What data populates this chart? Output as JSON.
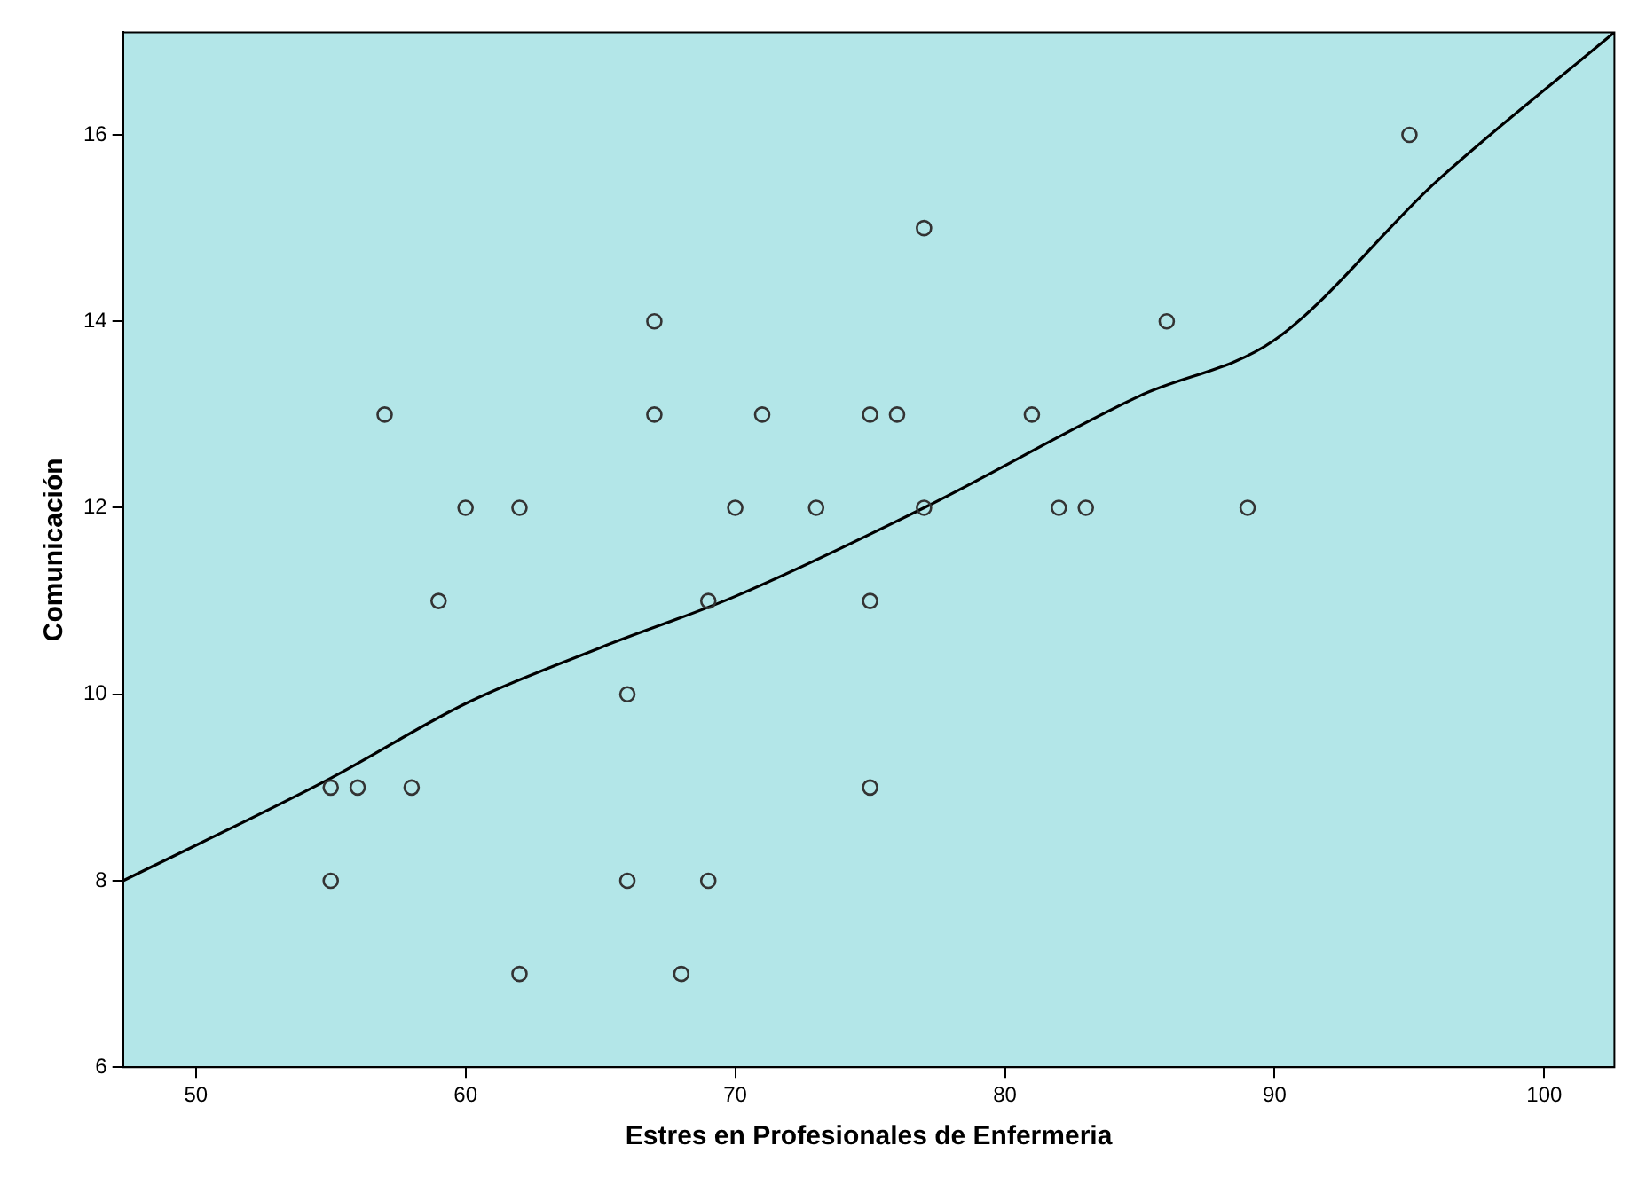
{
  "chart_data": {
    "type": "scatter",
    "xlabel": "Estres en Profesionales de Enfermeria",
    "ylabel": "Comunicación",
    "x": [
      55,
      55,
      56,
      58,
      57,
      59,
      60,
      62,
      62,
      66,
      66,
      67,
      67,
      68,
      69,
      69,
      70,
      71,
      73,
      75,
      75,
      75,
      76,
      77,
      77,
      81,
      82,
      83,
      86,
      89,
      95
    ],
    "series": [
      {
        "color": "#333333",
        "values": [
          9,
          8,
          9,
          9,
          13,
          11,
          12,
          12,
          7,
          10,
          8,
          14,
          13,
          7,
          11,
          8,
          12,
          13,
          12,
          13,
          11,
          9,
          13,
          15,
          12,
          13,
          12,
          12,
          14,
          12,
          16
        ]
      },
      {
        "type": "line",
        "color": "#000000",
        "marker": "none",
        "x": [
          47.3,
          55,
          60,
          65,
          70,
          77,
          85,
          90,
          96,
          102.6
        ],
        "values": [
          8,
          9.1,
          9.9,
          10.5,
          11.05,
          12,
          13.2,
          13.8,
          15.5,
          17.1
        ]
      }
    ],
    "xlim": [
      47.3,
      102.6
    ],
    "ylim": [
      6,
      17.1
    ],
    "xticks": [
      50,
      60,
      70,
      80,
      90,
      100
    ],
    "yticks": [
      6,
      8,
      10,
      12,
      14,
      16
    ],
    "grid": false,
    "legend": false,
    "marker": "circle"
  }
}
